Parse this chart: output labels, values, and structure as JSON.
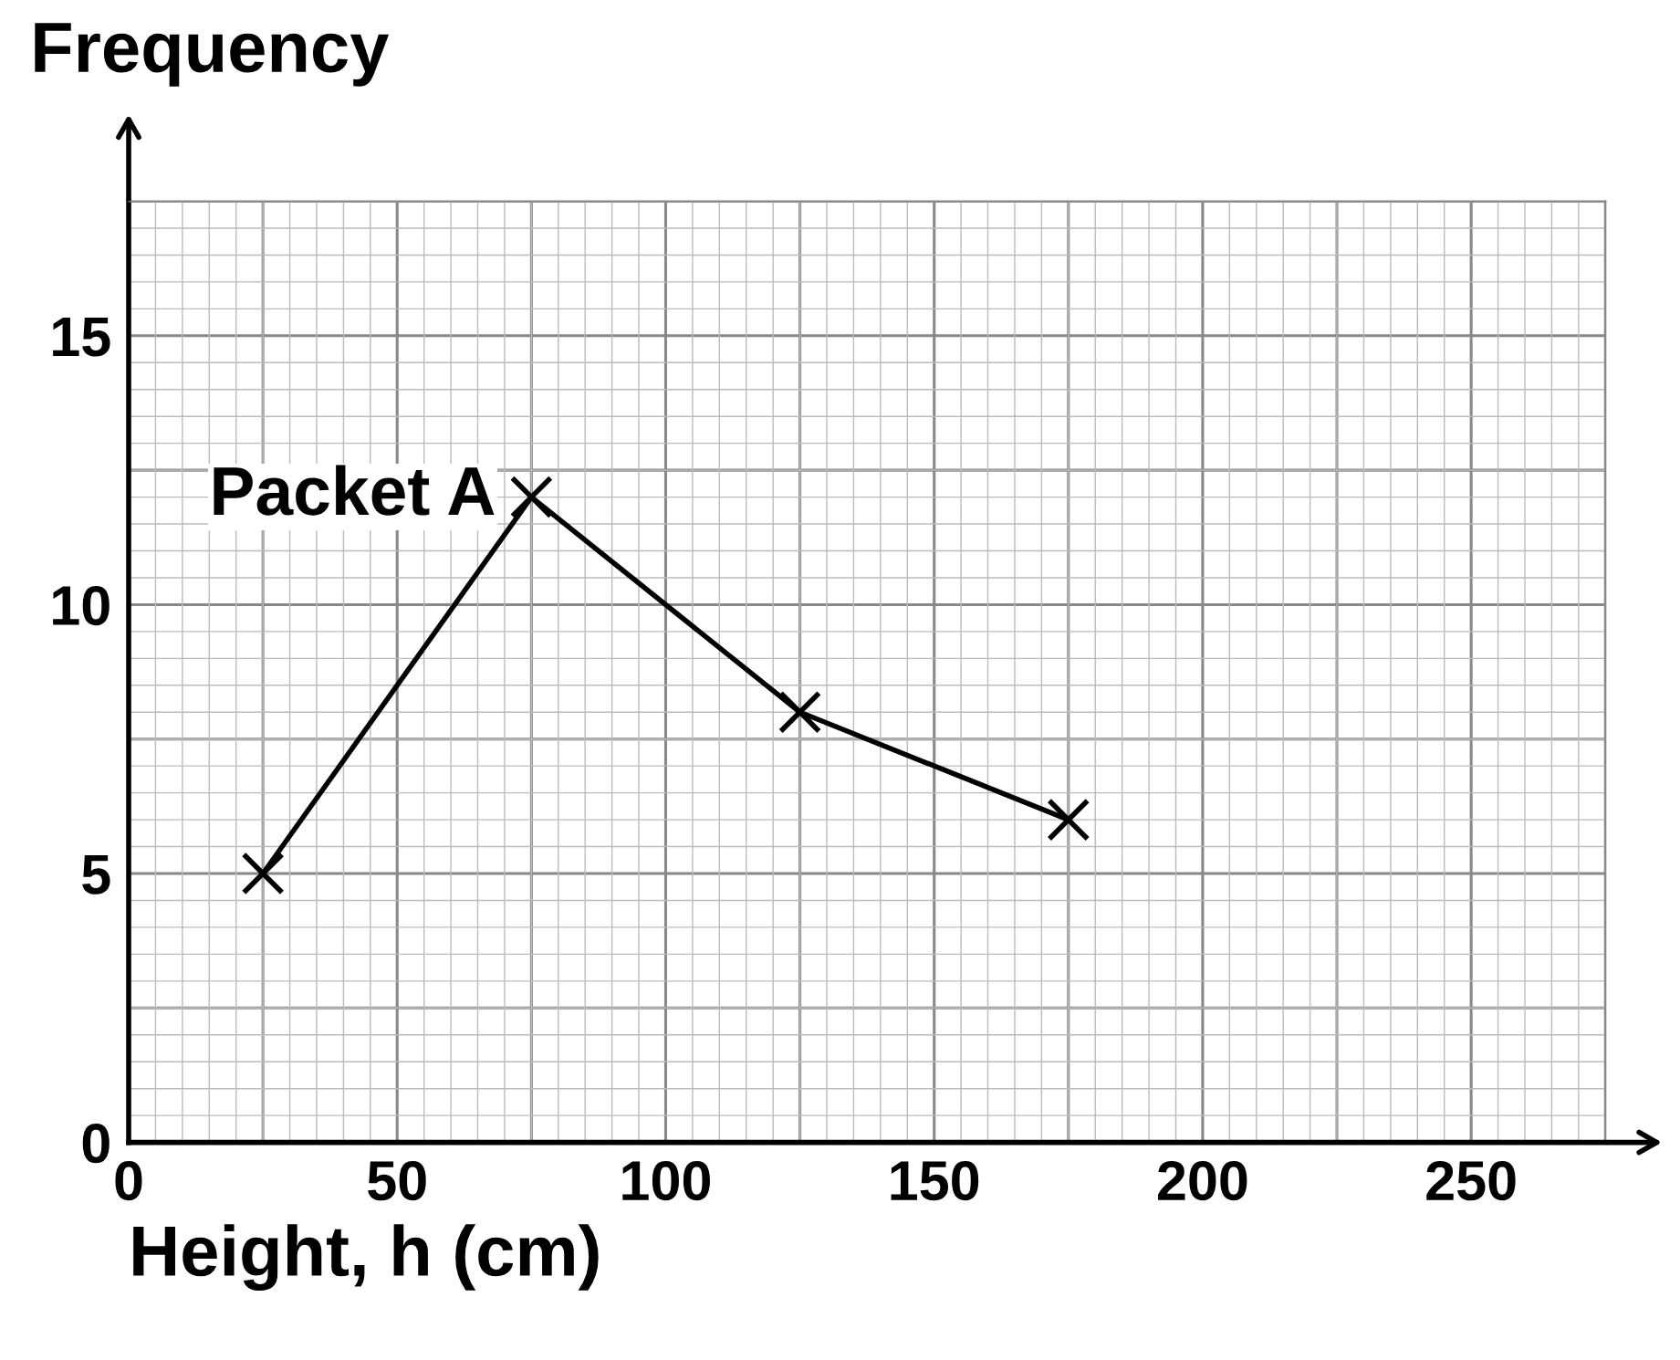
{
  "chart_data": {
    "type": "line",
    "xlabel": "Height, h (cm)",
    "ylabel": "Frequency",
    "x": [
      25,
      75,
      125,
      175
    ],
    "series": [
      {
        "name": "Packet A",
        "color": "#000000",
        "values": [
          5,
          12,
          8,
          6
        ]
      }
    ],
    "xlim": [
      0,
      275
    ],
    "ylim": [
      0,
      17.5
    ],
    "xticks": [
      0,
      50,
      100,
      150,
      200,
      250
    ],
    "yticks": [
      0,
      5,
      10,
      15
    ],
    "grid": true,
    "marker": "cross",
    "line_style": "solid",
    "legend": false
  }
}
